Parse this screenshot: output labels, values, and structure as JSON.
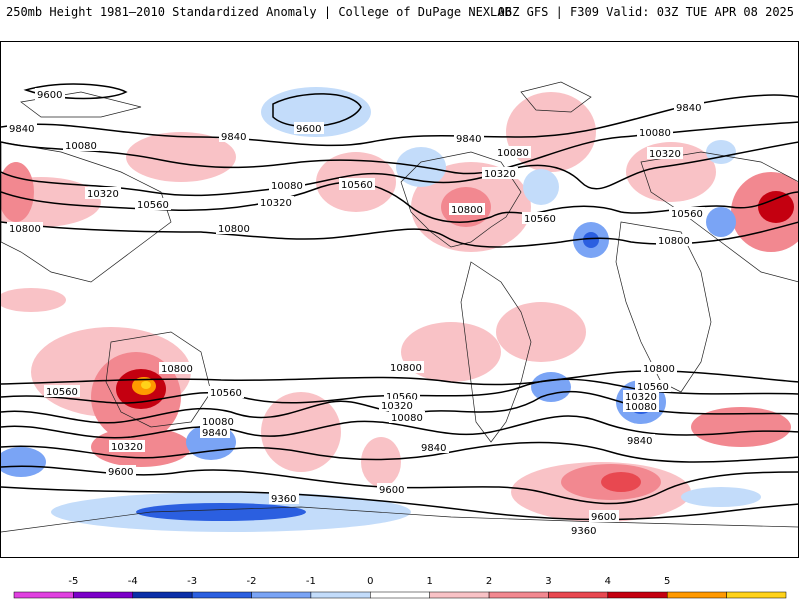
{
  "header": {
    "title_left": "250mb Height 1981–2010 Standardized Anomaly | College of DuPage NEXLAB",
    "title_right": "06Z GFS | F309 Valid: 03Z TUE APR 08 2025"
  },
  "map": {
    "contour_labels": [
      "9600",
      "9840",
      "10080",
      "10320",
      "10560",
      "10800",
      "9360"
    ]
  },
  "colorbar": {
    "ticks": [
      "-5",
      "-4",
      "-3",
      "-2",
      "-1",
      "0",
      "1",
      "2",
      "3",
      "4",
      "5"
    ],
    "colors": [
      "#e040e0",
      "#7b00c8",
      "#0b2fa8",
      "#2b5fe0",
      "#7aa4f5",
      "#c3dcfa",
      "#ffffff",
      "#f9c2c6",
      "#f28890",
      "#e84850",
      "#c40010",
      "#ff9900",
      "#ffd21a"
    ]
  }
}
